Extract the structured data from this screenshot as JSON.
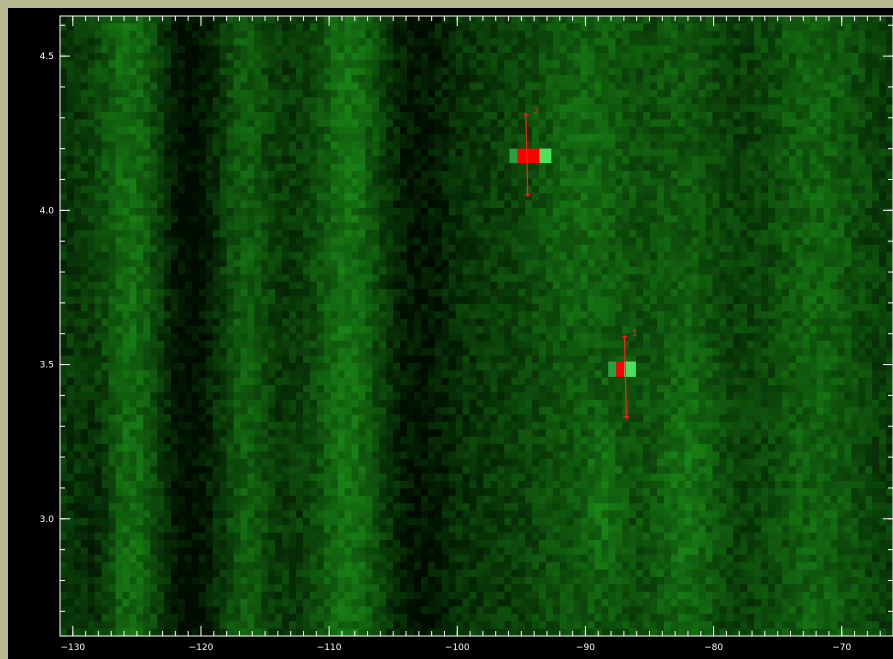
{
  "chart_data": {
    "type": "heatmap",
    "colormap": "black-to-green",
    "xlim": [
      -131,
      -66
    ],
    "ylim": [
      2.62,
      4.63
    ],
    "x_ticks": [
      -130,
      -120,
      -110,
      -100,
      -90,
      -80,
      -70
    ],
    "x_tick_labels": [
      "−130",
      "−120",
      "−110",
      "−100",
      "−90",
      "−80",
      "−70"
    ],
    "y_ticks": [
      3.0,
      3.5,
      4.0,
      4.5
    ],
    "y_tick_labels": [
      "3.0",
      "3.5",
      "4.0",
      "4.5"
    ],
    "x_minor_step": 1,
    "y_minor_step": 0.1,
    "highlights": [
      {
        "x": [
          -95.3,
          -93.6
        ],
        "y": [
          4.153,
          4.2
        ],
        "color": "#ff0000"
      },
      {
        "x": [
          -87.6,
          -87.0
        ],
        "y": [
          3.46,
          3.51
        ],
        "color": "#ff0000"
      }
    ],
    "markers": [
      {
        "label": "2",
        "x": -94.5,
        "y_top": 4.31,
        "y_bottom": 4.05
      },
      {
        "label": "1",
        "x": -86.8,
        "y_top": 3.59,
        "y_bottom": 3.33
      }
    ]
  },
  "colors": {
    "background": "#b8b890",
    "plot_background": "#000000",
    "axis": "#ffffff",
    "marker": "#ff2020"
  }
}
